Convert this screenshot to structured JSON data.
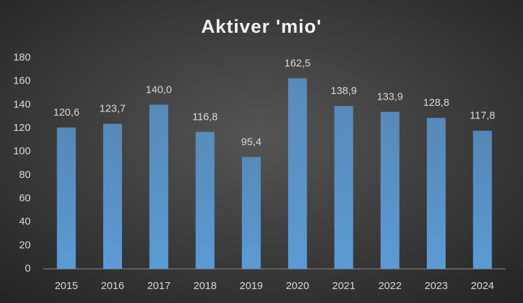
{
  "chart_data": {
    "type": "bar",
    "title": "Aktiver 'mio'",
    "categories": [
      "2015",
      "2016",
      "2017",
      "2018",
      "2019",
      "2020",
      "2021",
      "2022",
      "2023",
      "2024"
    ],
    "values": [
      120.6,
      123.7,
      140.0,
      116.8,
      95.4,
      162.5,
      138.9,
      133.9,
      128.8,
      117.8
    ],
    "value_labels": [
      "120,6",
      "123,7",
      "140,0",
      "116,8",
      "95,4",
      "162,5",
      "138,9",
      "133,9",
      "128,8",
      "117,8"
    ],
    "color": "#5b9bd5",
    "ylim": [
      0,
      180
    ],
    "yticks": [
      0,
      20,
      40,
      60,
      80,
      100,
      120,
      140,
      160,
      180
    ],
    "grid": false
  }
}
